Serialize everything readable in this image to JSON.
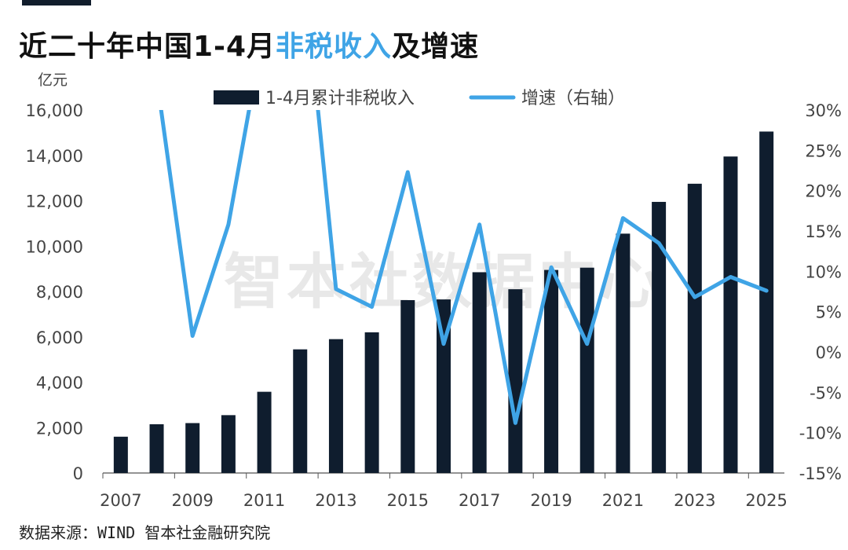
{
  "title": {
    "part1": "近二十年中国1-4月",
    "highlight": "非税收入",
    "part2": "及增速"
  },
  "source": "数据来源：WIND 智本社金融研究院",
  "watermark": "智本社数据中心",
  "colors": {
    "bar": "#0f1d2e",
    "line": "#3fa4e6",
    "title_highlight": "#3fa4e6",
    "axis": "#555555",
    "watermark": "#e8e8e8"
  },
  "chart_data": {
    "type": "bar+line",
    "y_unit": "亿元",
    "ylim": [
      0,
      16000
    ],
    "y_ticks": [
      0,
      2000,
      4000,
      6000,
      8000,
      10000,
      12000,
      14000,
      16000
    ],
    "y_tick_labels": [
      "0",
      "2,000",
      "4,000",
      "6,000",
      "8,000",
      "10,000",
      "12,000",
      "14,000",
      "16,000"
    ],
    "y2lim": [
      -15,
      30
    ],
    "y2_ticks": [
      -15,
      -10,
      -5,
      0,
      5,
      10,
      15,
      20,
      25,
      30
    ],
    "y2_tick_labels": [
      "-15%",
      "-10%",
      "-5%",
      "0%",
      "5%",
      "10%",
      "15%",
      "20%",
      "25%",
      "30%"
    ],
    "categories": [
      "2007",
      "2008",
      "2009",
      "2010",
      "2011",
      "2012",
      "2013",
      "2014",
      "2015",
      "2016",
      "2017",
      "2018",
      "2019",
      "2020",
      "2021",
      "2022",
      "2023",
      "2024",
      "2025"
    ],
    "x_tick_labels": [
      "2007",
      "2009",
      "2011",
      "2013",
      "2015",
      "2017",
      "2019",
      "2021",
      "2023",
      "2025"
    ],
    "legend_position": "top",
    "grid": false,
    "series": [
      {
        "name": "1-4月累计非税收入",
        "type": "bar",
        "axis": "left",
        "values": [
          1600,
          2150,
          2200,
          2550,
          3580,
          5450,
          5900,
          6200,
          7620,
          7650,
          8850,
          8100,
          8950,
          9050,
          10550,
          11950,
          12750,
          13950,
          15050
        ]
      },
      {
        "name": "增速（右轴）",
        "type": "line",
        "axis": "right",
        "values": [
          null,
          34.0,
          2.0,
          15.8,
          40.5,
          52.0,
          7.8,
          5.6,
          22.3,
          1.0,
          15.8,
          -8.8,
          10.5,
          1.0,
          16.6,
          13.5,
          6.8,
          9.3,
          7.6
        ]
      }
    ]
  }
}
